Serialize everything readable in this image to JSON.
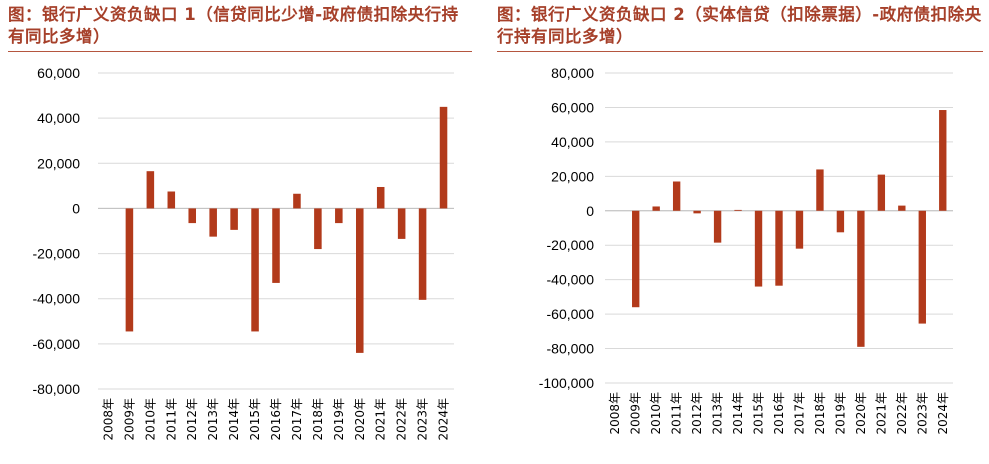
{
  "colors": {
    "bar": "#b23a1b",
    "title": "#a6402a",
    "grid": "#d9d9d9",
    "axis": "#bfbfbf"
  },
  "chart_data": [
    {
      "type": "bar",
      "title": "图：银行广义资负缺口 1（信贷同比少增-政府债扣除央行持有同比多增）",
      "xlabel": "",
      "ylabel": "",
      "ylim": [
        -80000,
        60000
      ],
      "yticks": [
        60000,
        40000,
        20000,
        0,
        -20000,
        -40000,
        -60000,
        -80000
      ],
      "ytick_labels": [
        "60,000",
        "40,000",
        "20,000",
        "0",
        "-20,000",
        "-40,000",
        "-60,000",
        "-80,000"
      ],
      "grid": true,
      "legend": "none",
      "categories": [
        "2008年",
        "2009年",
        "2010年",
        "2011年",
        "2012年",
        "2013年",
        "2014年",
        "2015年",
        "2016年",
        "2017年",
        "2018年",
        "2019年",
        "2020年",
        "2021年",
        "2022年",
        "2023年",
        "2024年"
      ],
      "series": [
        {
          "values": [
            0,
            -54500,
            16500,
            7500,
            -6500,
            -12500,
            -9500,
            -54500,
            -33000,
            6500,
            -18000,
            -6500,
            -64000,
            9500,
            -13500,
            -40500,
            45000
          ]
        }
      ]
    },
    {
      "type": "bar",
      "title": "图：银行广义资负缺口 2（实体信贷（扣除票据）-政府债扣除央行持有同比多增）",
      "xlabel": "",
      "ylabel": "",
      "ylim": [
        -100000,
        80000
      ],
      "yticks": [
        80000,
        60000,
        40000,
        20000,
        0,
        -20000,
        -40000,
        -60000,
        -80000,
        -100000
      ],
      "ytick_labels": [
        "80,000",
        "60,000",
        "40,000",
        "20,000",
        "0",
        "-20,000",
        "-40,000",
        "-60,000",
        "-80,000",
        "-100,000"
      ],
      "grid": true,
      "legend": "none",
      "categories": [
        "2008年",
        "2009年",
        "2010年",
        "2011年",
        "2012年",
        "2013年",
        "2014年",
        "2015年",
        "2016年",
        "2017年",
        "2018年",
        "2019年",
        "2020年",
        "2021年",
        "2022年",
        "2023年",
        "2024年"
      ],
      "series": [
        {
          "values": [
            0,
            -56000,
            2500,
            17000,
            -1500,
            -18500,
            500,
            -44000,
            -43500,
            -22000,
            24000,
            -12500,
            -79000,
            21000,
            3000,
            -65500,
            58500
          ]
        }
      ]
    }
  ]
}
